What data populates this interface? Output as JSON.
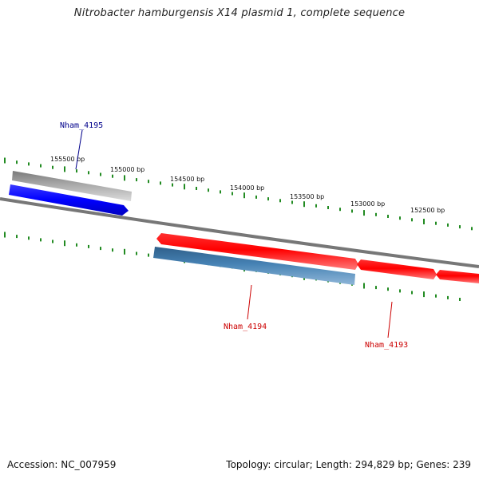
{
  "title": "Nitrobacter hamburgensis X14 plasmid 1, complete sequence",
  "accession_text": "Accession: NC_007959",
  "summary_text": "Topology: circular; Length: 294,829 bp; Genes: 239",
  "ticks": [
    "155500 bp",
    "155000 bp",
    "154500 bp",
    "154000 bp",
    "153500 bp",
    "153000 bp",
    "152500 bp"
  ],
  "genes": [
    {
      "name": "Nham_4195",
      "color": "#00008b"
    },
    {
      "name": "Nham_4194",
      "color": "#cc0000"
    },
    {
      "name": "Nham_4193",
      "color": "#cc0000"
    }
  ],
  "colors": {
    "cds_forward": "#0000ff",
    "cds_reverse": "#ff0000",
    "gene_bar": "#4682b4",
    "gene_bar_gray": "#a9a9a9",
    "backbone": "#777777",
    "tick": "#228b22"
  }
}
